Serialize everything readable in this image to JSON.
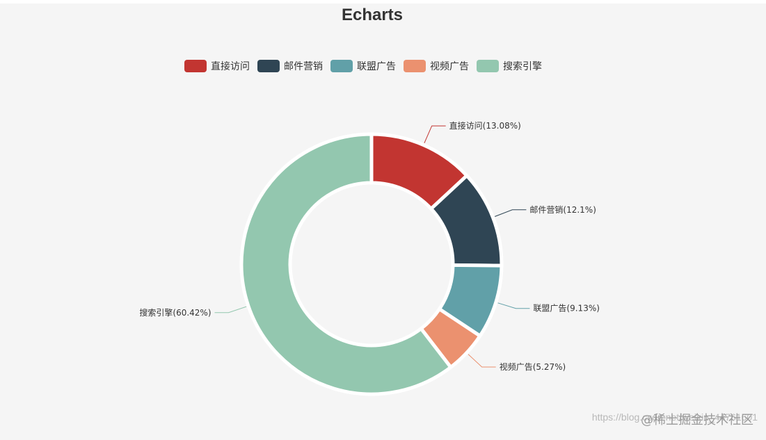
{
  "chart_data": {
    "type": "pie",
    "title": "Echarts",
    "donut": true,
    "legend_placement": "top-center",
    "categories": [
      "直接访问",
      "邮件营销",
      "联盟广告",
      "视频广告",
      "搜索引擎"
    ],
    "values": [
      13.08,
      12.1,
      9.13,
      5.27,
      60.42
    ],
    "labels": [
      "直接访问(13.08%)",
      "邮件营销(12.1%)",
      "联盟广告(9.13%)",
      "视频广告(5.27%)",
      "搜索引擎(60.42%)"
    ],
    "colors": [
      "#c23531",
      "#2f4554",
      "#61a0a8",
      "#eb916f",
      "#93c7af"
    ]
  },
  "watermark": {
    "text": "@稀土掘金技术社区",
    "url": "https://blog.csdn.net/weixin_44761601"
  }
}
